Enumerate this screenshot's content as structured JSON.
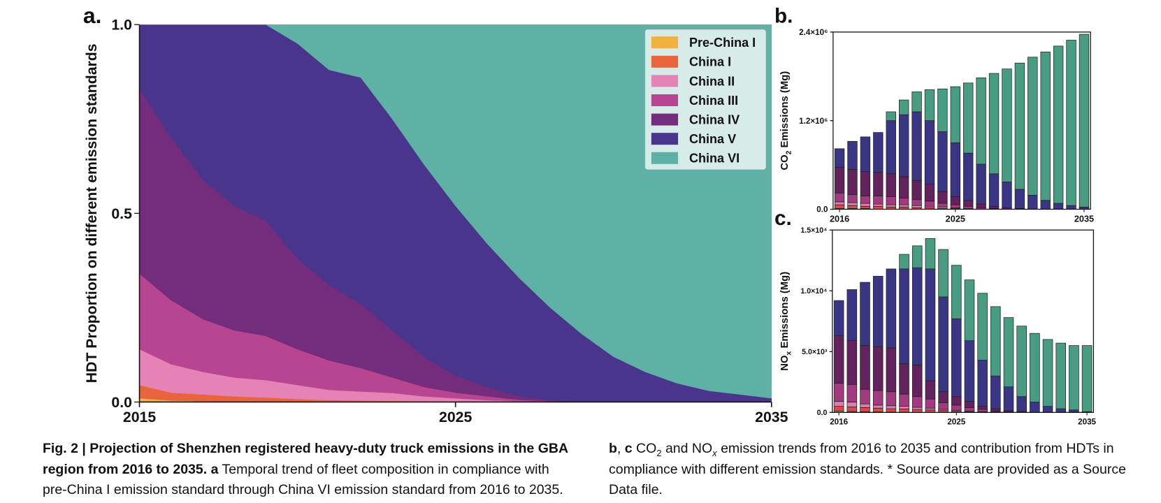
{
  "chart_data": [
    {
      "type": "area",
      "panel": "a.",
      "ylabel": "HDT Proportion on different emission standards",
      "x": [
        2015,
        2016,
        2017,
        2018,
        2019,
        2020,
        2021,
        2022,
        2023,
        2024,
        2025,
        2026,
        2027,
        2028,
        2029,
        2030,
        2031,
        2032,
        2033,
        2034,
        2035
      ],
      "xlim": [
        2015,
        2035
      ],
      "xticks": [
        2015,
        2025,
        2035
      ],
      "ylim": [
        0,
        1
      ],
      "yticks": [
        {
          "value": 0,
          "label": "0.0"
        },
        {
          "value": 0.5,
          "label": "0.5"
        },
        {
          "value": 1,
          "label": "1.0"
        }
      ],
      "stacked": true,
      "legend": "upper right",
      "series": [
        {
          "name": "Pre-China I",
          "color": "#f0b13e",
          "values": [
            0.01,
            0.004,
            0.002,
            0.001,
            0,
            0,
            0,
            0,
            0,
            0,
            0,
            0,
            0,
            0,
            0,
            0,
            0,
            0,
            0,
            0,
            0
          ]
        },
        {
          "name": "China I",
          "color": "#e8643c",
          "values": [
            0.035,
            0.021,
            0.018,
            0.014,
            0.012,
            0.008,
            0.005,
            0.004,
            0.003,
            0.002,
            0.001,
            0,
            0,
            0,
            0,
            0,
            0,
            0,
            0,
            0,
            0
          ]
        },
        {
          "name": "China II",
          "color": "#e583b6",
          "values": [
            0.095,
            0.075,
            0.06,
            0.05,
            0.046,
            0.037,
            0.027,
            0.024,
            0.021,
            0.013,
            0.009,
            0.005,
            0.002,
            0,
            0,
            0,
            0,
            0,
            0,
            0,
            0
          ]
        },
        {
          "name": "China III",
          "color": "#b74592",
          "values": [
            0.2,
            0.17,
            0.14,
            0.125,
            0.117,
            0.095,
            0.078,
            0.062,
            0.041,
            0.025,
            0.015,
            0.01,
            0.004,
            0.002,
            0,
            0,
            0,
            0,
            0,
            0,
            0
          ]
        },
        {
          "name": "China IV",
          "color": "#742c7c",
          "values": [
            0.49,
            0.43,
            0.37,
            0.33,
            0.305,
            0.24,
            0.2,
            0.17,
            0.125,
            0.08,
            0.045,
            0.025,
            0.009,
            0.003,
            0,
            0,
            0,
            0,
            0,
            0,
            0
          ]
        },
        {
          "name": "China V",
          "color": "#4a358c",
          "values": [
            0.17,
            0.3,
            0.41,
            0.48,
            0.52,
            0.57,
            0.57,
            0.6,
            0.56,
            0.51,
            0.45,
            0.38,
            0.315,
            0.245,
            0.18,
            0.12,
            0.08,
            0.05,
            0.03,
            0.02,
            0.01
          ]
        },
        {
          "name": "China VI",
          "color": "#5fb0a5",
          "values": [
            0,
            0,
            0,
            0,
            0,
            0.05,
            0.12,
            0.14,
            0.25,
            0.37,
            0.48,
            0.58,
            0.67,
            0.75,
            0.82,
            0.88,
            0.92,
            0.95,
            0.97,
            0.98,
            0.99
          ]
        }
      ]
    },
    {
      "type": "bar",
      "panel": "b.",
      "ylabel": [
        "CO",
        "2",
        " Emissions (Mg)"
      ],
      "categories": [
        "2016",
        null,
        null,
        null,
        null,
        null,
        null,
        null,
        null,
        "2025",
        null,
        null,
        null,
        null,
        null,
        null,
        null,
        null,
        null,
        "2035"
      ],
      "ylim": [
        0,
        2400000
      ],
      "yticks": [
        {
          "value": 0,
          "label": "0.0"
        },
        {
          "value": 1200000,
          "label": "1.2×10⁶"
        },
        {
          "value": 2400000,
          "label": "2.4×10⁶"
        }
      ],
      "stacked": true,
      "series": [
        {
          "color": "#e8a53a",
          "values": [
            10000,
            10000,
            10000,
            0,
            0,
            0,
            0,
            0,
            0,
            0,
            0,
            0,
            0,
            0,
            0,
            0,
            0,
            0,
            0,
            0
          ]
        },
        {
          "color": "#d94949",
          "values": [
            50000,
            40000,
            30000,
            40000,
            30000,
            30000,
            20000,
            20000,
            10000,
            10000,
            0,
            0,
            0,
            0,
            0,
            0,
            0,
            0,
            0,
            0
          ]
        },
        {
          "color": "#d97cae",
          "values": [
            40000,
            40000,
            40000,
            30000,
            30000,
            30000,
            30000,
            20000,
            20000,
            10000,
            10000,
            0,
            0,
            0,
            0,
            0,
            0,
            0,
            0,
            0
          ]
        },
        {
          "color": "#a33a7f",
          "values": [
            120000,
            110000,
            100000,
            110000,
            110000,
            90000,
            80000,
            70000,
            50000,
            40000,
            30000,
            20000,
            10000,
            0,
            0,
            0,
            0,
            0,
            0,
            0
          ]
        },
        {
          "color": "#63215d",
          "values": [
            350000,
            340000,
            330000,
            320000,
            310000,
            290000,
            260000,
            230000,
            160000,
            110000,
            80000,
            50000,
            30000,
            20000,
            10000,
            0,
            0,
            0,
            0,
            0
          ]
        },
        {
          "color": "#3b3585",
          "values": [
            250000,
            380000,
            470000,
            540000,
            720000,
            840000,
            930000,
            860000,
            810000,
            730000,
            640000,
            540000,
            440000,
            350000,
            260000,
            190000,
            120000,
            80000,
            50000,
            30000
          ]
        },
        {
          "color": "#489c82",
          "values": [
            0,
            0,
            0,
            0,
            120000,
            200000,
            270000,
            420000,
            580000,
            760000,
            950000,
            1170000,
            1360000,
            1530000,
            1710000,
            1870000,
            2010000,
            2130000,
            2240000,
            2340000
          ]
        }
      ]
    },
    {
      "type": "bar",
      "panel": "c.",
      "ylabel": [
        "NO",
        "x",
        " Emissions (Mg)"
      ],
      "categories": [
        "2016",
        null,
        null,
        null,
        null,
        null,
        null,
        null,
        null,
        "2025",
        null,
        null,
        null,
        null,
        null,
        null,
        null,
        null,
        null,
        "2035"
      ],
      "ylim": [
        0,
        15000
      ],
      "yticks": [
        {
          "value": 0,
          "label": "0.0"
        },
        {
          "value": 5000,
          "label": "5.0×10³"
        },
        {
          "value": 10000,
          "label": "1.0×10⁴"
        },
        {
          "value": 15000,
          "label": "1.5×10⁴"
        }
      ],
      "stacked": true,
      "series": [
        {
          "color": "#e8a53a",
          "values": [
            100,
            80,
            60,
            40,
            30,
            20,
            0,
            0,
            0,
            0,
            0,
            0,
            0,
            0,
            0,
            0,
            0,
            0,
            0,
            0
          ]
        },
        {
          "color": "#d94949",
          "values": [
            400,
            370,
            340,
            310,
            270,
            260,
            240,
            200,
            150,
            100,
            60,
            30,
            0,
            0,
            0,
            0,
            0,
            0,
            0,
            0
          ]
        },
        {
          "color": "#d97cae",
          "values": [
            400,
            400,
            300,
            250,
            250,
            220,
            180,
            150,
            100,
            80,
            60,
            30,
            60,
            0,
            0,
            0,
            0,
            0,
            0,
            0
          ]
        },
        {
          "color": "#a33a7f",
          "values": [
            1500,
            1450,
            1200,
            1200,
            1150,
            1000,
            880,
            750,
            550,
            420,
            280,
            190,
            60,
            60,
            0,
            0,
            0,
            0,
            0,
            0
          ]
        },
        {
          "color": "#63215d",
          "values": [
            3900,
            3600,
            3600,
            3600,
            3600,
            2500,
            2600,
            1500,
            900,
            700,
            500,
            250,
            180,
            90,
            80,
            0,
            0,
            0,
            0,
            0
          ]
        },
        {
          "color": "#3b3585",
          "values": [
            2900,
            4200,
            5200,
            5800,
            6500,
            7800,
            8000,
            9200,
            7800,
            6400,
            5000,
            3800,
            2700,
            1950,
            1220,
            850,
            500,
            300,
            200,
            60
          ]
        },
        {
          "color": "#489c82",
          "values": [
            0,
            0,
            0,
            0,
            0,
            1200,
            1800,
            2500,
            3900,
            4400,
            5000,
            5500,
            5700,
            5700,
            5800,
            5650,
            5500,
            5400,
            5300,
            5440
          ]
        }
      ]
    }
  ],
  "caption": [
    {
      "text": "Fig. 2 | Projection of Shenzhen registered heavy-duty truck emissions in the GBA region from 2016 to 2035. a",
      "style": "bold"
    },
    {
      "text": " Temporal trend of fleet composition in compliance with pre-China I emission standard through China VI emission standard from 2016 to 2035. ",
      "style": "normal"
    },
    {
      "text": "b",
      "style": "bold"
    },
    {
      "text": ", ",
      "style": "normal"
    },
    {
      "text": "c",
      "style": "bold"
    },
    {
      "text": " CO",
      "style": "normal"
    },
    {
      "text": "2",
      "style": "sub"
    },
    {
      "text": " and NO",
      "style": "normal"
    },
    {
      "text": "x",
      "style": "sub-italic"
    },
    {
      "text": " emission trends from 2016 to 2035 and contribution from HDTs in compliance with different emission standards. * Source data are provided as a Source Data file.",
      "style": "normal"
    }
  ]
}
